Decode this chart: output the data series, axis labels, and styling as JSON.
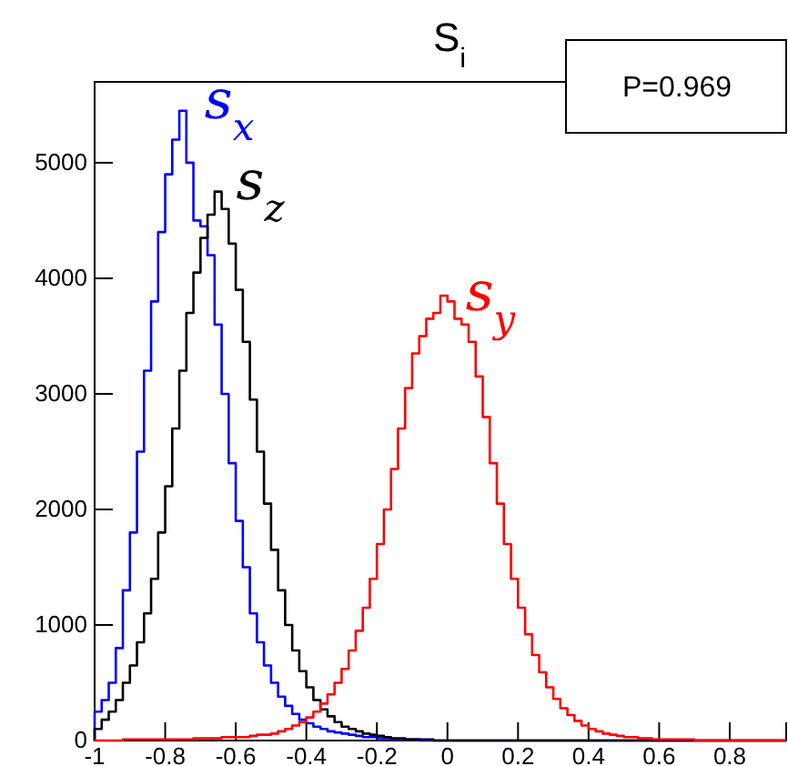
{
  "chart_data": {
    "type": "histogram",
    "title": "S$_{i}$",
    "annotations": [
      "P=0.969"
    ],
    "grid": false,
    "bins": [
      -1,
      -0.98,
      -0.96,
      -0.94,
      -0.92,
      -0.9,
      -0.88,
      -0.86,
      -0.84,
      -0.82,
      -0.8,
      -0.78,
      -0.76,
      -0.74,
      -0.72,
      -0.7,
      -0.68,
      -0.66,
      -0.64,
      -0.62,
      -0.6,
      -0.58,
      -0.56,
      -0.54,
      -0.52,
      -0.5,
      -0.48,
      -0.46,
      -0.44,
      -0.42,
      -0.4,
      -0.38,
      -0.36,
      -0.34,
      -0.32,
      -0.3,
      -0.28,
      -0.26,
      -0.24,
      -0.22,
      -0.2,
      -0.18,
      -0.16,
      -0.14,
      -0.12,
      -0.1,
      -0.08,
      -0.06,
      -0.04,
      -0.02,
      0,
      0.02,
      0.04,
      0.06,
      0.08,
      0.1,
      0.12,
      0.14,
      0.16,
      0.18,
      0.2,
      0.22,
      0.24,
      0.26,
      0.28,
      0.3,
      0.32,
      0.34,
      0.36,
      0.38,
      0.4,
      0.42,
      0.44,
      0.46,
      0.48,
      0.5,
      0.52,
      0.54,
      0.56,
      0.58,
      0.6,
      0.62,
      0.64,
      0.66,
      0.68,
      0.7,
      0.72,
      0.74,
      0.76,
      0.78,
      0.8,
      0.82,
      0.84,
      0.86,
      0.88,
      0.9,
      0.92,
      0.94,
      0.96
    ],
    "xlim": [
      -1,
      0.96
    ],
    "ylim": [
      0,
      5700
    ],
    "xticks": [
      -1,
      -0.8,
      -0.6,
      -0.4,
      -0.2,
      0,
      0.2,
      0.4,
      0.6,
      0.8
    ],
    "yticks": [
      0,
      1000,
      2000,
      3000,
      4000,
      5000
    ],
    "series": [
      {
        "name": "s$_{x}$",
        "color": "#0000ff",
        "values": [
          250,
          350,
          500,
          800,
          1300,
          1800,
          2500,
          3200,
          3800,
          4400,
          4900,
          5200,
          5450,
          5000,
          4500,
          4450,
          4200,
          3600,
          3000,
          2400,
          1900,
          1500,
          1100,
          850,
          650,
          500,
          380,
          300,
          230,
          180,
          150,
          120,
          100,
          80,
          70,
          60,
          50,
          40,
          30,
          30,
          20,
          20,
          10,
          10,
          10,
          10,
          0,
          0,
          0,
          0,
          0,
          0,
          0,
          0,
          0,
          0,
          0,
          0,
          0,
          0,
          0,
          0,
          0,
          0,
          0,
          0,
          0,
          0,
          0,
          0,
          0,
          0,
          0,
          0,
          0,
          0,
          0,
          0,
          0,
          0,
          0,
          0,
          0,
          0,
          0,
          0,
          0,
          0,
          0,
          0,
          0,
          0,
          0,
          0,
          0,
          0,
          0,
          0
        ]
      },
      {
        "name": "s$_{z}$",
        "color": "#000000",
        "values": [
          100,
          180,
          250,
          350,
          500,
          650,
          850,
          1100,
          1400,
          1800,
          2200,
          2700,
          3200,
          3700,
          4050,
          4350,
          4550,
          4750,
          4600,
          4300,
          3900,
          3450,
          2950,
          2500,
          2050,
          1650,
          1300,
          1000,
          780,
          600,
          460,
          350,
          270,
          210,
          160,
          120,
          100,
          80,
          60,
          50,
          40,
          30,
          20,
          20,
          10,
          10,
          10,
          10,
          0,
          0,
          0,
          0,
          0,
          0,
          0,
          0,
          0,
          0,
          0,
          0,
          0,
          0,
          0,
          0,
          0,
          0,
          0,
          0,
          0,
          0,
          0,
          0,
          0,
          0,
          0,
          0,
          0,
          0,
          0,
          0,
          0,
          0,
          0,
          0,
          0,
          0,
          0,
          0,
          0,
          0,
          0,
          0,
          0,
          0,
          0,
          0,
          0,
          0
        ]
      },
      {
        "name": "s$_{y}$",
        "color": "#ff0000",
        "values": [
          0,
          0,
          0,
          0,
          10,
          10,
          10,
          10,
          10,
          10,
          10,
          10,
          10,
          10,
          20,
          20,
          20,
          20,
          30,
          30,
          30,
          30,
          40,
          50,
          50,
          60,
          80,
          100,
          130,
          160,
          200,
          250,
          320,
          400,
          500,
          620,
          780,
          950,
          1150,
          1400,
          1700,
          2000,
          2350,
          2700,
          3050,
          3350,
          3500,
          3650,
          3700,
          3850,
          3800,
          3650,
          3600,
          3450,
          3150,
          2800,
          2400,
          2050,
          1700,
          1400,
          1150,
          920,
          740,
          590,
          460,
          360,
          280,
          220,
          170,
          130,
          100,
          80,
          60,
          50,
          40,
          30,
          30,
          20,
          20,
          10,
          10,
          10,
          10,
          10,
          10,
          0,
          0,
          0,
          0,
          0,
          0,
          0,
          0,
          0,
          0,
          0,
          0,
          0
        ]
      }
    ]
  }
}
